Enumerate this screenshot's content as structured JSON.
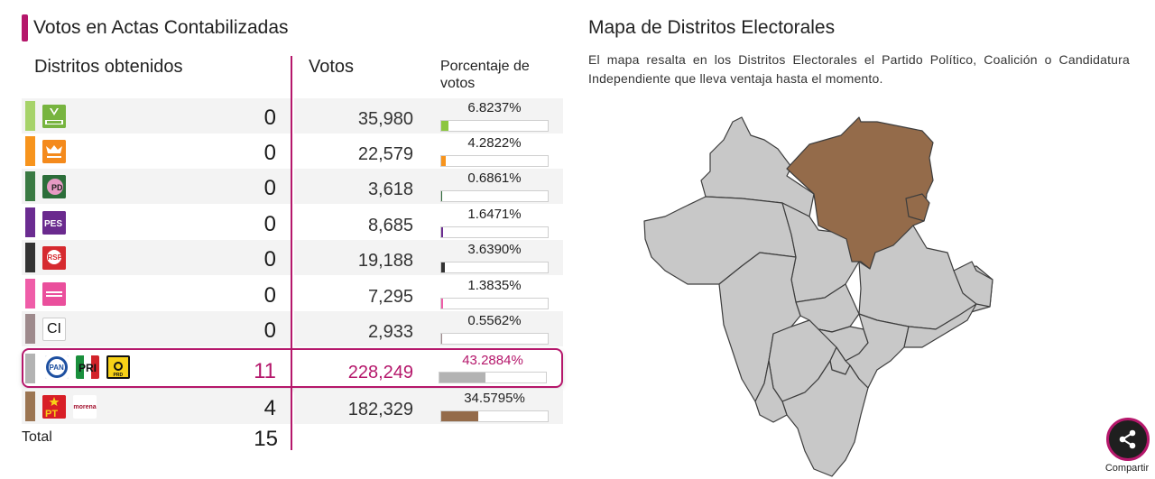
{
  "results": {
    "title": "Votos en Actas Contabilizadas",
    "col_districts": "Distritos obtenidos",
    "col_votes": "Votos",
    "col_percent": "Porcentaje de votos",
    "accent_color": "#b5176b",
    "parties": [
      {
        "logos": [
          "VERDE"
        ],
        "stripe_color": "#a7d36a",
        "districts": "0",
        "votes": "35,980",
        "percent": "6.8237%",
        "percent_value": 6.8237,
        "bar_color": "#8cc63f"
      },
      {
        "logos": [
          "MC"
        ],
        "stripe_color": "#f7941d",
        "districts": "0",
        "votes": "22,579",
        "percent": "4.2822%",
        "percent_value": 4.2822,
        "bar_color": "#f7941d"
      },
      {
        "logos": [
          "PD"
        ],
        "stripe_color": "#3a7a43",
        "districts": "0",
        "votes": "3,618",
        "percent": "0.6861%",
        "percent_value": 0.6861,
        "bar_color": "#2f6b3a"
      },
      {
        "logos": [
          "PES"
        ],
        "stripe_color": "#6b2c91",
        "districts": "0",
        "votes": "8,685",
        "percent": "1.6471%",
        "percent_value": 1.6471,
        "bar_color": "#6b2c91"
      },
      {
        "logos": [
          "RSP"
        ],
        "stripe_color": "#333333",
        "districts": "0",
        "votes": "19,188",
        "percent": "3.6390%",
        "percent_value": 3.639,
        "bar_color": "#333333"
      },
      {
        "logos": [
          "FXM"
        ],
        "stripe_color": "#ef5da8",
        "districts": "0",
        "votes": "7,295",
        "percent": "1.3835%",
        "percent_value": 1.3835,
        "bar_color": "#ef5da8"
      },
      {
        "logos": [
          "CI"
        ],
        "stripe_color": "#9e8a8c",
        "districts": "0",
        "votes": "2,933",
        "percent": "0.5562%",
        "percent_value": 0.5562,
        "bar_color": "#9e8a8c"
      },
      {
        "logos": [
          "PAN",
          "PRI",
          "PRD"
        ],
        "stripe_color": "#b3b3b3",
        "districts": "11",
        "votes": "228,249",
        "percent": "43.2884%",
        "percent_value": 43.2884,
        "bar_color": "#b3b3b3",
        "winner": true
      },
      {
        "logos": [
          "PT",
          "morena"
        ],
        "stripe_color": "#9b7552",
        "districts": "4",
        "votes": "182,329",
        "percent": "34.5795%",
        "percent_value": 34.5795,
        "bar_color": "#946b4a"
      }
    ],
    "total_label": "Total",
    "total_value": "15"
  },
  "map": {
    "title": "Mapa de Distritos Electorales",
    "description": "El mapa resalta en los Distritos Electorales el Partido Político, Coalición o Candidatura Independiente que lleva ventaja hasta el momento.",
    "colors": {
      "coalition": "#c8c8c8",
      "morena_pt": "#946b4a"
    }
  },
  "share": {
    "label": "Compartir"
  }
}
